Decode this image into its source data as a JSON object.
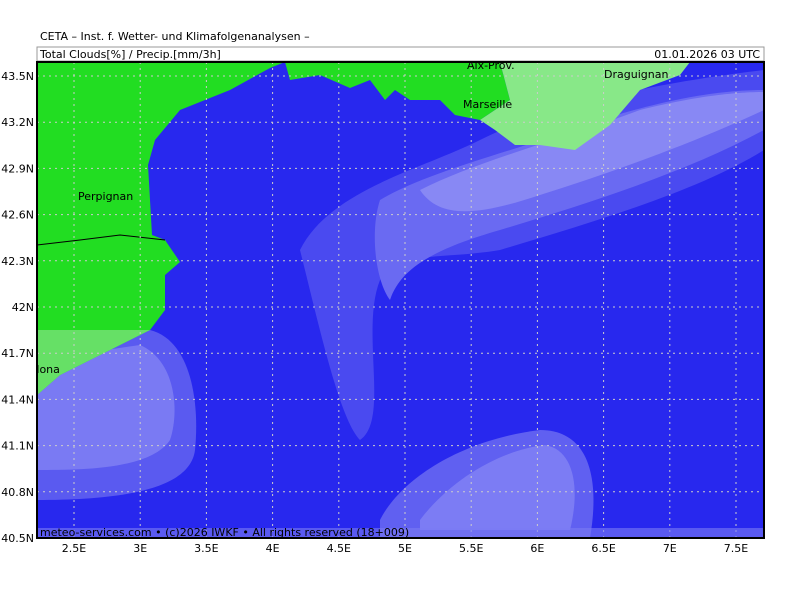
{
  "header": {
    "title": "CETA – Inst. f. Wetter- und Klimafolgenanalysen –",
    "subtitle": "Total Clouds[%] / Precip.[mm/3h]",
    "datetime": "01.01.2026 03 UTC"
  },
  "axes": {
    "lat_labels": [
      "43.5N",
      "43.2N",
      "42.9N",
      "42.6N",
      "42.3N",
      "42N",
      "41.7N",
      "41.4N",
      "41.1N",
      "40.8N",
      "40.5N"
    ],
    "lon_labels": [
      "2.5E",
      "3E",
      "3.5E",
      "4E",
      "4.5E",
      "5E",
      "5.5E",
      "6E",
      "6.5E",
      "7E",
      "7.5E"
    ]
  },
  "places": [
    "Perpignan",
    "Barcelona",
    "Marseille",
    "Aix-Prov.",
    "Draguignan"
  ],
  "footer": "meteo-services.com • (c)2026 IWKF • All rights reserved (18+009)"
}
